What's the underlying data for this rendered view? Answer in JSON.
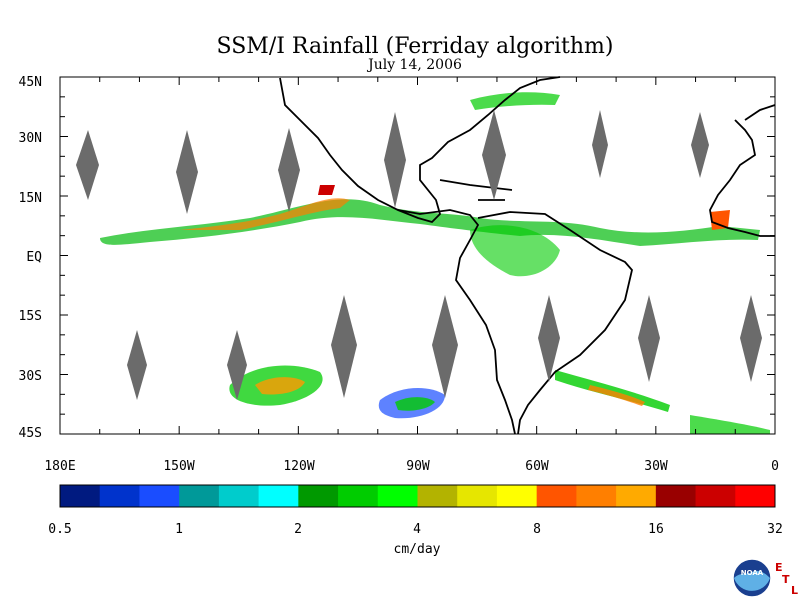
{
  "figure": {
    "title": "SSM/I Rainfall (Ferriday algorithm)",
    "date": "July 14, 2006"
  },
  "map": {
    "lat_labels": [
      "45N",
      "30N",
      "15N",
      "EQ",
      "15S",
      "30S",
      "45S"
    ],
    "lon_labels": [
      "180E",
      "150W",
      "120W",
      "90W",
      "60W",
      "30W",
      "0"
    ],
    "lat_range": [
      -45,
      45
    ],
    "lon_range": [
      -180,
      0
    ]
  },
  "colorbar": {
    "label": "cm/day",
    "tick_labels": [
      "0.5",
      "1",
      "2",
      "4",
      "8",
      "16",
      "32"
    ],
    "colors": [
      "#001a80",
      "#0033cc",
      "#1a4dff",
      "#009999",
      "#00cccc",
      "#00ffff",
      "#009900",
      "#00cc00",
      "#00ff00",
      "#b3b300",
      "#e6e600",
      "#ffff00",
      "#ff5500",
      "#ff7f00",
      "#ffaa00",
      "#990000",
      "#cc0000",
      "#ff0000"
    ]
  },
  "logo": {
    "name": "NOAA",
    "letters": [
      "E",
      "T",
      "L"
    ]
  },
  "colors": {
    "swath_gap": "#6b6b6b",
    "coast": "#000000"
  }
}
